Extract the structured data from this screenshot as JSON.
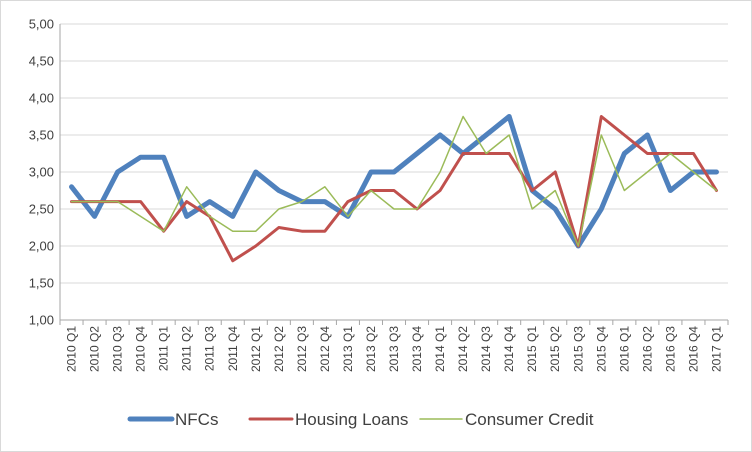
{
  "chart_data": {
    "type": "line",
    "title": "",
    "xlabel": "",
    "ylabel": "",
    "ylim": [
      1.0,
      5.0
    ],
    "ytick_labels": [
      "1,00",
      "1,50",
      "2,00",
      "2,50",
      "3,00",
      "3,50",
      "4,00",
      "4,50",
      "5,00"
    ],
    "ytick_values": [
      1.0,
      1.5,
      2.0,
      2.5,
      3.0,
      3.5,
      4.0,
      4.5,
      5.0
    ],
    "grid": "horizontal",
    "legend_position": "bottom",
    "categories": [
      "2010 Q1",
      "2010 Q2",
      "2010 Q3",
      "2010 Q4",
      "2011 Q1",
      "2011 Q2",
      "2011 Q3",
      "2011 Q4",
      "2012 Q1",
      "2012 Q2",
      "2012 Q3",
      "2012 Q4",
      "2013 Q1",
      "2013 Q2",
      "2013 Q3",
      "2013 Q4",
      "2014 Q1",
      "2014 Q2",
      "2014 Q3",
      "2014 Q4",
      "2015 Q1",
      "2015 Q2",
      "2015 Q3",
      "2015 Q4",
      "2016 Q1",
      "2016 Q2",
      "2016 Q3",
      "2016 Q4",
      "2017 Q1"
    ],
    "series": [
      {
        "name": "NFCs",
        "color": "#4f81bd",
        "values": [
          2.8,
          2.4,
          3.0,
          3.2,
          3.2,
          2.4,
          2.6,
          2.4,
          3.0,
          2.75,
          2.6,
          2.6,
          2.4,
          3.0,
          3.0,
          3.25,
          3.5,
          3.25,
          3.5,
          3.75,
          2.75,
          2.5,
          2.0,
          2.5,
          3.25,
          3.5,
          2.75,
          3.0,
          3.0
        ]
      },
      {
        "name": "Housing Loans",
        "color": "#c0504d",
        "values": [
          2.6,
          2.6,
          2.6,
          2.6,
          2.2,
          2.6,
          2.4,
          1.8,
          2.0,
          2.25,
          2.2,
          2.2,
          2.6,
          2.75,
          2.75,
          2.5,
          2.75,
          3.25,
          3.25,
          3.25,
          2.75,
          3.0,
          2.0,
          3.75,
          3.5,
          3.25,
          3.25,
          3.25,
          2.75
        ]
      },
      {
        "name": "Consumer Credit",
        "color": "#9bbb59",
        "values": [
          2.6,
          2.6,
          2.6,
          2.4,
          2.2,
          2.8,
          2.4,
          2.2,
          2.2,
          2.5,
          2.6,
          2.8,
          2.4,
          2.75,
          2.5,
          2.5,
          3.0,
          3.75,
          3.25,
          3.5,
          2.5,
          2.75,
          2.0,
          3.5,
          2.75,
          3.0,
          3.25,
          3.0,
          2.75
        ]
      }
    ]
  }
}
